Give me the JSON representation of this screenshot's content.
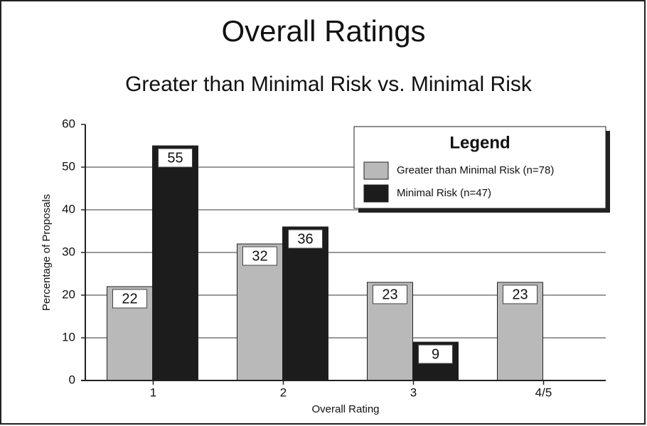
{
  "chart_data": {
    "type": "bar",
    "title": "Overall Ratings",
    "subtitle": "Greater than Minimal Risk vs. Minimal Risk",
    "x_label": "Overall Rating",
    "y_label": "Percentage of Proposals",
    "legend_title": "Legend",
    "legend_position": "upper right",
    "categories": [
      "1",
      "2",
      "3",
      "4/5"
    ],
    "series": [
      {
        "name": "Greater than Minimal Risk (n=78)",
        "color": "#b9b9b9",
        "values": [
          22,
          32,
          23,
          23
        ]
      },
      {
        "name": "Minimal Risk (n=47)",
        "color": "#1c1c1c",
        "values": [
          55,
          36,
          9,
          null
        ]
      }
    ],
    "ylim": [
      0,
      60
    ],
    "yticks": [
      0,
      10,
      20,
      30,
      40,
      50,
      60
    ],
    "grid": true
  }
}
